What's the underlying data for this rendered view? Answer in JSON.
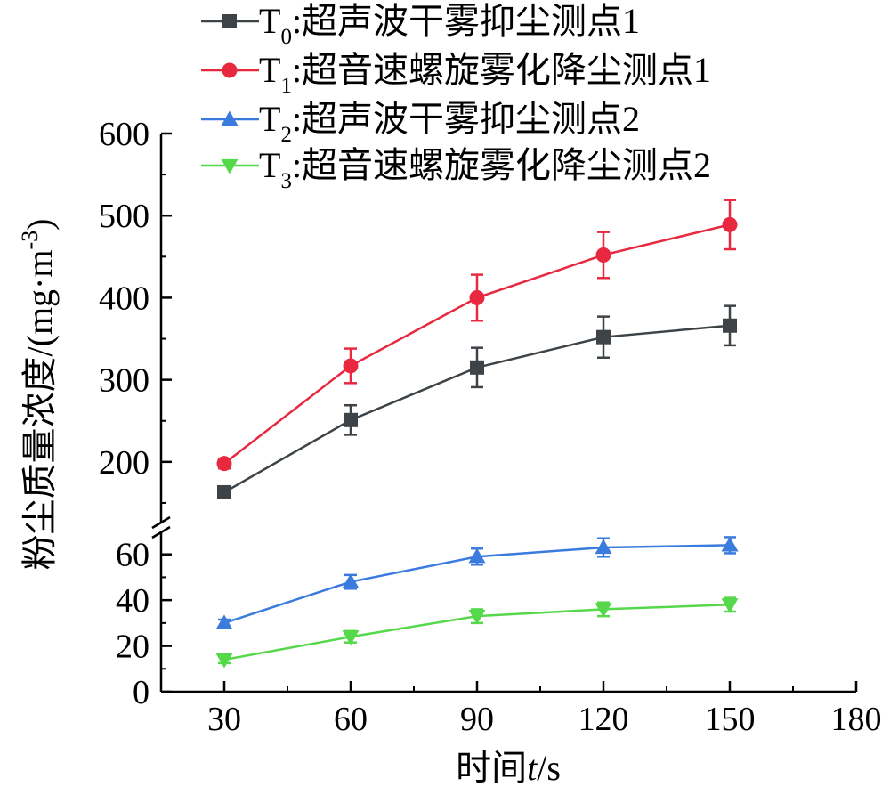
{
  "chart_data": {
    "type": "line",
    "x": [
      30,
      60,
      90,
      120,
      150
    ],
    "xlim": [
      15,
      180
    ],
    "x_ticks": [
      "30",
      "60",
      "90",
      "120",
      "150",
      "180"
    ],
    "x_tick_values": [
      30,
      60,
      90,
      120,
      150,
      180
    ],
    "xlabel_prefix": "时间",
    "xlabel_var": "t",
    "xlabel_unit": "/s",
    "ylabel": "粉尘质量浓度/(mg·m",
    "ylabel_sup": "-3",
    "ylabel_close": ")",
    "y_axis_break": true,
    "y_lower_range": [
      0,
      70
    ],
    "y_upper_range": [
      125,
      600
    ],
    "y_lower_ticks": [
      "0",
      "20",
      "40",
      "60"
    ],
    "y_lower_tick_values": [
      0,
      20,
      40,
      60
    ],
    "y_upper_ticks": [
      "200",
      "300",
      "400",
      "500",
      "600"
    ],
    "y_upper_tick_values": [
      200,
      300,
      400,
      500,
      600
    ],
    "legend_position": "top",
    "series": [
      {
        "name_base": "T",
        "name_sub": "0",
        "name_rest": ":超声波干雾抑尘测点1",
        "color": "#3d4346",
        "marker": "square",
        "values": [
          163,
          251,
          315,
          352,
          366
        ],
        "errors": [
          6,
          18,
          24,
          25,
          24
        ]
      },
      {
        "name_base": "T",
        "name_sub": "1",
        "name_rest": ":超音速螺旋雾化降尘测点1",
        "color": "#e8283f",
        "marker": "circle",
        "values": [
          198,
          317,
          400,
          452,
          489
        ],
        "errors": [
          6,
          21,
          28,
          28,
          30
        ]
      },
      {
        "name_base": "T",
        "name_sub": "2",
        "name_rest": ":超声波干雾抑尘测点2",
        "color": "#3a7bdd",
        "marker": "triangle-up",
        "values": [
          30,
          48,
          59,
          63,
          64
        ],
        "errors": [
          1.5,
          3,
          3.5,
          4,
          3.5
        ]
      },
      {
        "name_base": "T",
        "name_sub": "3",
        "name_rest": ":超音速螺旋雾化降尘测点2",
        "color": "#55d84a",
        "marker": "triangle-down",
        "values": [
          14,
          24,
          33,
          36,
          38
        ],
        "errors": [
          1.5,
          2.5,
          3,
          3,
          3
        ]
      }
    ]
  }
}
